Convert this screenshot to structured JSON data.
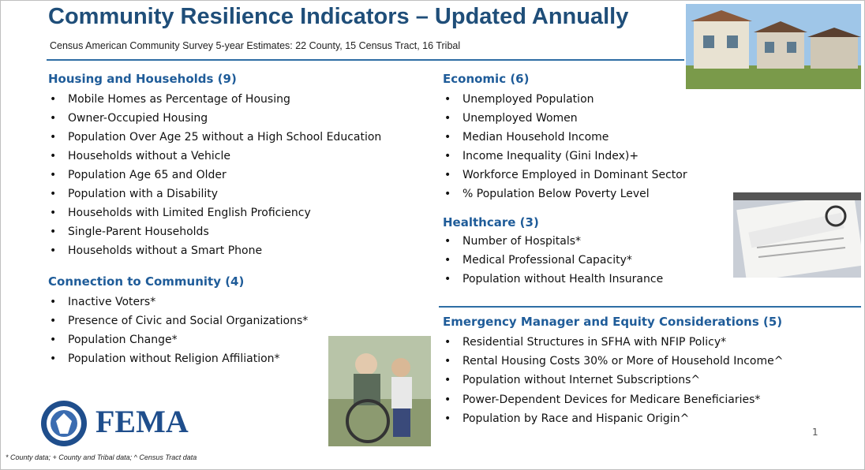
{
  "header": {
    "title": "Community Resilience Indicators – Updated Annually",
    "subtitle": "Census American Community Survey 5-year Estimates: 22 County, 15 Census Tract, 16 Tribal"
  },
  "sections": [
    {
      "heading": "Housing and Households (9)",
      "items": [
        "Mobile Homes as Percentage of Housing",
        "Owner-Occupied Housing",
        "Population Over Age 25 without a High School Education",
        "Households without a Vehicle",
        "Population Age 65 and Older",
        "Population with a Disability",
        "Households with Limited English Proficiency",
        "Single-Parent Households",
        "Households without a Smart Phone"
      ]
    },
    {
      "heading": "Connection to Community (4)",
      "items": [
        "Inactive Voters*",
        "Presence of Civic and Social Organizations*",
        "Population Change*",
        "Population without Religion Affiliation*"
      ]
    },
    {
      "heading": "Economic (6)",
      "items": [
        "Unemployed Population",
        "Unemployed Women",
        "Median Household Income",
        "Income Inequality (Gini Index)+",
        "Workforce Employed in Dominant Sector",
        "% Population Below Poverty Level"
      ]
    },
    {
      "heading": "Healthcare (3)",
      "items": [
        "Number of Hospitals*",
        "Medical Professional Capacity*",
        "Population without Health Insurance"
      ]
    },
    {
      "heading": "Emergency Manager and Equity Considerations (5)",
      "items": [
        "Residential Structures in SFHA with NFIP Policy*",
        "Rental Housing Costs 30% or More  of Household Income^",
        "Population without Internet Subscriptions^",
        "Power-Dependent Devices for Medicare Beneficiaries*",
        "Population by Race and Hispanic Origin^"
      ]
    }
  ],
  "logo": {
    "text": "FEMA"
  },
  "footnote": "* County data; + County and Tribal data; ^ Census Tract data",
  "page_number": "1"
}
